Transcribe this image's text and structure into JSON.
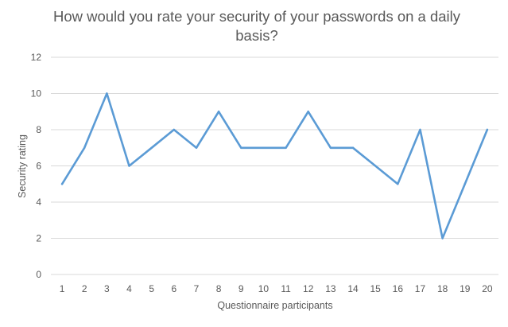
{
  "chart_data": {
    "type": "line",
    "title_lines": [
      "How would you rate your security of your passwords on a daily",
      "basis?"
    ],
    "xlabel": "Questionnaire participants",
    "ylabel": "Security rating",
    "categories": [
      "1",
      "2",
      "3",
      "4",
      "5",
      "6",
      "7",
      "8",
      "9",
      "10",
      "11",
      "12",
      "13",
      "14",
      "15",
      "16",
      "17",
      "18",
      "19",
      "20"
    ],
    "values": [
      5,
      7,
      10,
      6,
      7,
      8,
      7,
      9,
      7,
      7,
      7,
      9,
      7,
      7,
      6,
      5,
      8,
      2,
      5,
      8
    ],
    "ylim": [
      0,
      12
    ],
    "yticks": [
      "0",
      "2",
      "4",
      "6",
      "8",
      "10",
      "12"
    ],
    "grid": true,
    "legend": "none",
    "line_color": "#5b9bd5"
  }
}
